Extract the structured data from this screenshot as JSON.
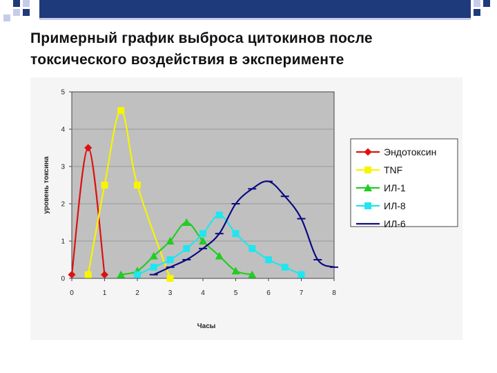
{
  "slide": {
    "title_line1": "Примерный график выброса цитокинов после",
    "title_line2": "токсического воздействия в эксперименте"
  },
  "colors": {
    "corner_dark": "#1f3a7a",
    "corner_light": "#c7cbea",
    "plot_bg": "#c0c0c0",
    "noise_bg": "#ededed"
  },
  "chart_data": {
    "type": "line",
    "title": "",
    "xlabel": "Часы",
    "ylabel": "уровень токсина",
    "xlim": [
      0,
      8
    ],
    "ylim": [
      0,
      5
    ],
    "x_ticks": [
      "0",
      "1",
      "2",
      "3",
      "4",
      "5",
      "6",
      "7",
      "8"
    ],
    "y_ticks": [
      "0",
      "1",
      "2",
      "3",
      "4",
      "5"
    ],
    "grid": "horizontal",
    "legend_position": "right",
    "series": [
      {
        "name": "Эндотоксин",
        "color": "#dd1111",
        "marker": "diamond",
        "points": [
          [
            0,
            0.1
          ],
          [
            0.5,
            3.5
          ],
          [
            1,
            0.1
          ]
        ]
      },
      {
        "name": "TNF",
        "color": "#f7f500",
        "marker": "square",
        "points": [
          [
            0.5,
            0.1
          ],
          [
            1,
            2.5
          ],
          [
            1.5,
            4.5
          ],
          [
            2,
            2.5
          ],
          [
            3,
            0
          ]
        ]
      },
      {
        "name": "ИЛ-1",
        "color": "#22cc22",
        "marker": "triangle",
        "points": [
          [
            1.5,
            0.1
          ],
          [
            2,
            0.2
          ],
          [
            2.5,
            0.6
          ],
          [
            3,
            1.0
          ],
          [
            3.5,
            1.5
          ],
          [
            4,
            1.0
          ],
          [
            4.5,
            0.6
          ],
          [
            5,
            0.2
          ],
          [
            5.5,
            0.1
          ]
        ]
      },
      {
        "name": "ИЛ-8",
        "color": "#22e5ee",
        "marker": "square",
        "points": [
          [
            2,
            0.1
          ],
          [
            2.5,
            0.3
          ],
          [
            3,
            0.5
          ],
          [
            3.5,
            0.8
          ],
          [
            4,
            1.2
          ],
          [
            4.5,
            1.7
          ],
          [
            5,
            1.2
          ],
          [
            5.5,
            0.8
          ],
          [
            6,
            0.5
          ],
          [
            6.5,
            0.3
          ],
          [
            7,
            0.1
          ]
        ]
      },
      {
        "name": "ИЛ-6",
        "color": "#0a0a80",
        "marker": "dash",
        "points": [
          [
            2.5,
            0.1
          ],
          [
            3,
            0.3
          ],
          [
            3.5,
            0.5
          ],
          [
            4,
            0.8
          ],
          [
            4.5,
            1.2
          ],
          [
            5,
            2.0
          ],
          [
            5.5,
            2.4
          ],
          [
            6,
            2.6
          ],
          [
            6.5,
            2.2
          ],
          [
            7,
            1.6
          ],
          [
            7.5,
            0.5
          ],
          [
            8,
            0.3
          ]
        ]
      }
    ]
  }
}
